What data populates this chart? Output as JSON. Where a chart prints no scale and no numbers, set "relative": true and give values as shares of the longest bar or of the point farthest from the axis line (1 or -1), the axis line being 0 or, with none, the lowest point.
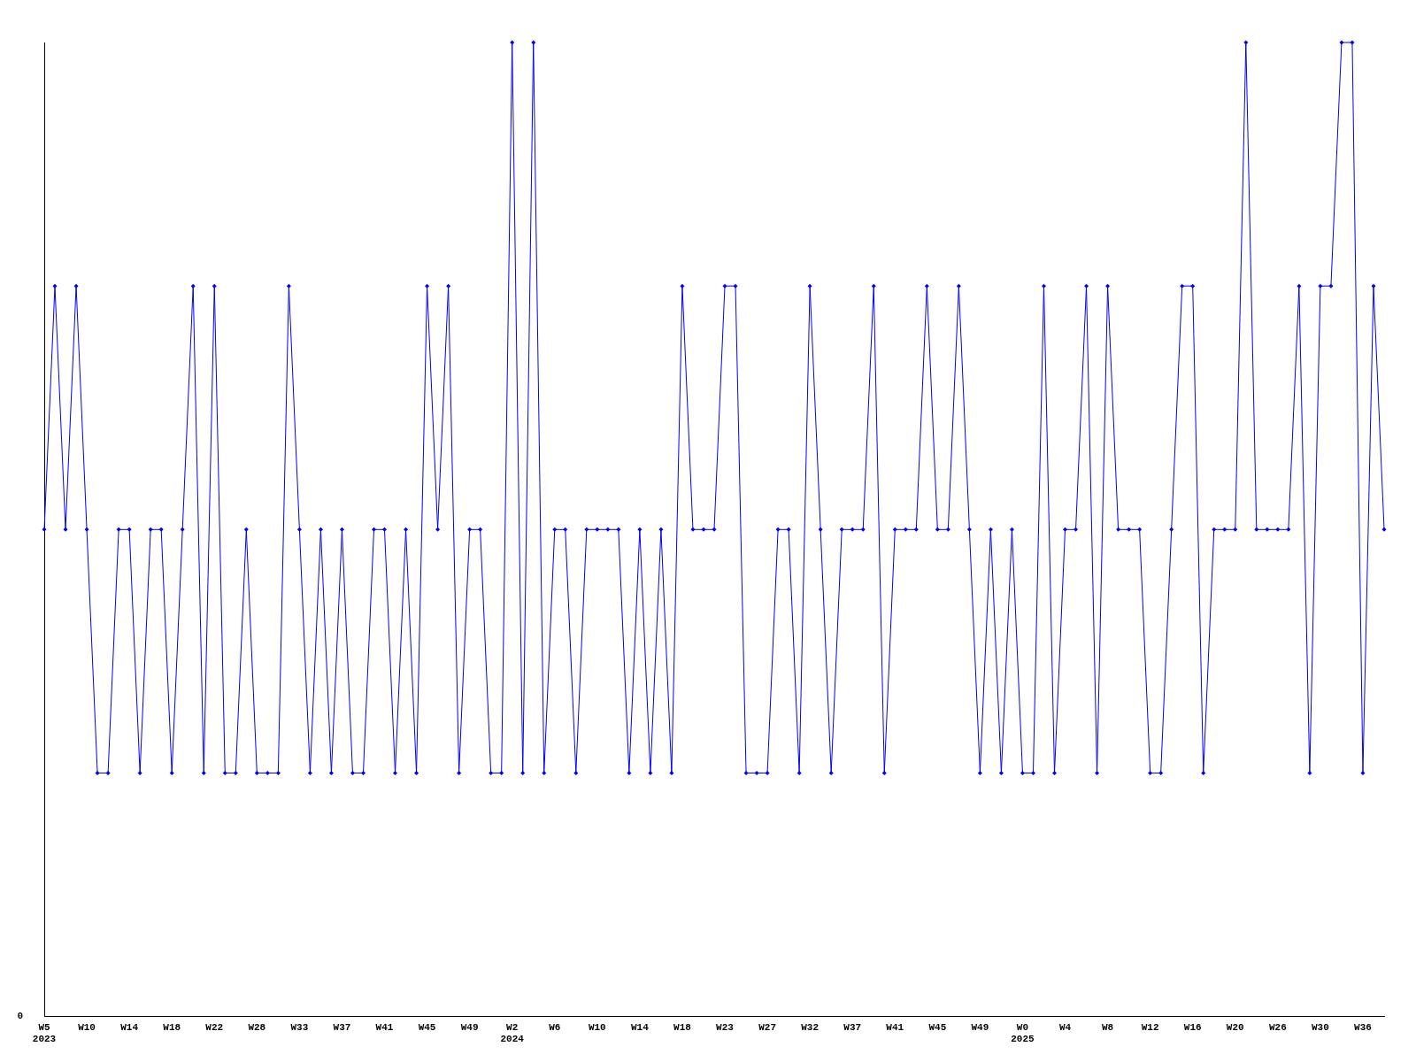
{
  "chart_data": {
    "type": "line",
    "relative": true,
    "legend": false,
    "grid": false,
    "marker": "diamond",
    "line_style": "solid",
    "annotations": [
      "0"
    ],
    "categories": [
      "W5\n2023",
      null,
      null,
      null,
      "W10",
      null,
      null,
      null,
      "W14",
      null,
      null,
      null,
      "W18",
      null,
      null,
      null,
      "W22",
      null,
      null,
      null,
      "W28",
      null,
      null,
      null,
      "W33",
      null,
      null,
      null,
      "W37",
      null,
      null,
      null,
      "W41",
      null,
      null,
      null,
      "W45",
      null,
      null,
      null,
      "W49",
      null,
      null,
      null,
      "W2\n2024",
      null,
      null,
      null,
      "W6",
      null,
      null,
      null,
      "W10",
      null,
      null,
      null,
      "W14",
      null,
      null,
      null,
      "W18",
      null,
      null,
      null,
      "W23",
      null,
      null,
      null,
      "W27",
      null,
      null,
      null,
      "W32",
      null,
      null,
      null,
      "W37",
      null,
      null,
      null,
      "W41",
      null,
      null,
      null,
      "W45",
      null,
      null,
      null,
      "W49",
      null,
      null,
      null,
      "W0\n2025",
      null,
      null,
      null,
      "W4",
      null,
      null,
      null,
      "W8",
      null,
      null,
      null,
      "W12",
      null,
      null,
      null,
      "W16",
      null,
      null,
      null,
      "W20",
      null,
      null,
      null,
      "W26",
      null,
      null,
      null,
      "W30",
      null,
      null,
      null,
      "W36",
      null,
      null
    ],
    "series": [
      {
        "color": "#0000ff",
        "values": [
          0.5,
          0.75,
          0.5,
          0.75,
          0.5,
          0.25,
          0.25,
          0.5,
          0.5,
          0.25,
          0.5,
          0.5,
          0.25,
          0.5,
          0.75,
          0.25,
          0.75,
          0.25,
          0.25,
          0.5,
          0.25,
          0.25,
          0.25,
          0.75,
          0.5,
          0.25,
          0.5,
          0.25,
          0.5,
          0.25,
          0.25,
          0.5,
          0.5,
          0.25,
          0.5,
          0.25,
          0.75,
          0.5,
          0.75,
          0.25,
          0.5,
          0.5,
          0.25,
          0.25,
          1,
          0.25,
          1,
          0.25,
          0.5,
          0.5,
          0.25,
          0.5,
          0.5,
          0.5,
          0.5,
          0.25,
          0.5,
          0.25,
          0.5,
          0.25,
          0.75,
          0.5,
          0.5,
          0.5,
          0.75,
          0.75,
          0.25,
          0.25,
          0.25,
          0.5,
          0.5,
          0.25,
          0.75,
          0.5,
          0.25,
          0.5,
          0.5,
          0.5,
          0.75,
          0.25,
          0.5,
          0.5,
          0.5,
          0.75,
          0.5,
          0.5,
          0.75,
          0.5,
          0.25,
          0.5,
          0.25,
          0.5,
          0.25,
          0.25,
          0.75,
          0.25,
          0.5,
          0.5,
          0.75,
          0.25,
          0.75,
          0.5,
          0.5,
          0.5,
          0.25,
          0.25,
          0.5,
          0.75,
          0.75,
          0.25,
          0.5,
          0.5,
          0.5,
          1,
          0.5,
          0.5,
          0.5,
          0.5,
          0.75,
          0.25,
          0.75,
          0.75,
          1,
          1,
          0.25,
          0.75,
          0.5
        ]
      }
    ]
  }
}
